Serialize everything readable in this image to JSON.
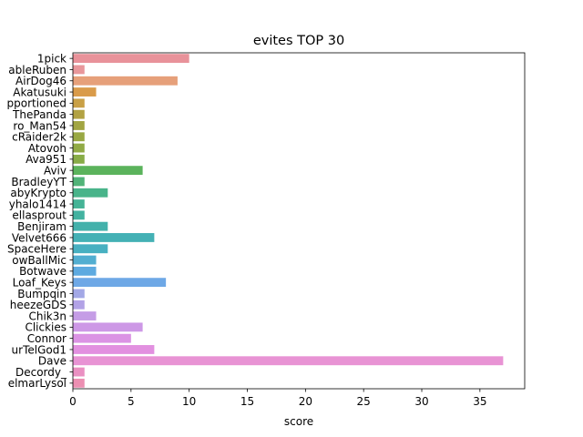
{
  "chart_data": {
    "type": "bar",
    "orientation": "horizontal",
    "title": "evites TOP 30",
    "xlabel": "score",
    "ylabel": "",
    "xlim": [
      0,
      38.85
    ],
    "xticks": [
      0,
      5,
      10,
      15,
      20,
      25,
      30,
      35
    ],
    "grid": false,
    "categories": [
      "1pick",
      "ableRuben",
      "AirDog46",
      "Akatusuki",
      "pportioned",
      "ThePanda",
      "ro_Man54",
      "cRaider2k",
      "Atovoh",
      "Ava951",
      "Aviv",
      "BradleyYT",
      "abyKrypto",
      "yhalo1414",
      "ellasprout",
      "Benjiram",
      "Velvet666",
      "SpaceHere",
      "owBallMic",
      "Botwave",
      "Loaf_Keys",
      "Bumpqin",
      "heezeGDS",
      "Chik3n",
      "Clickies",
      "Connor",
      "urTelGod1",
      "Dave",
      "Decordy_",
      "elmarLysol"
    ],
    "values": [
      10,
      1,
      9,
      2,
      1,
      1,
      1,
      1,
      1,
      1,
      6,
      1,
      3,
      1,
      1,
      3,
      7,
      3,
      2,
      2,
      8,
      1,
      1,
      2,
      6,
      5,
      7,
      37,
      1,
      1
    ],
    "colors": [
      "#e8929a",
      "#e8979b",
      "#e6a07a",
      "#d99b4a",
      "#c9a046",
      "#b2a243",
      "#a2a542",
      "#99a843",
      "#91aa45",
      "#88ac47",
      "#5bb35c",
      "#51b378",
      "#49b48a",
      "#45b396",
      "#43b2a0",
      "#43b1ab",
      "#44b1b5",
      "#48b0c1",
      "#52aed1",
      "#5eaae0",
      "#6ea8e6",
      "#a3a8e6",
      "#b2a2e6",
      "#c59de6",
      "#cd98e6",
      "#db93e4",
      "#e290e0",
      "#e893d4",
      "#ea90c2",
      "#ec8fb2"
    ]
  }
}
